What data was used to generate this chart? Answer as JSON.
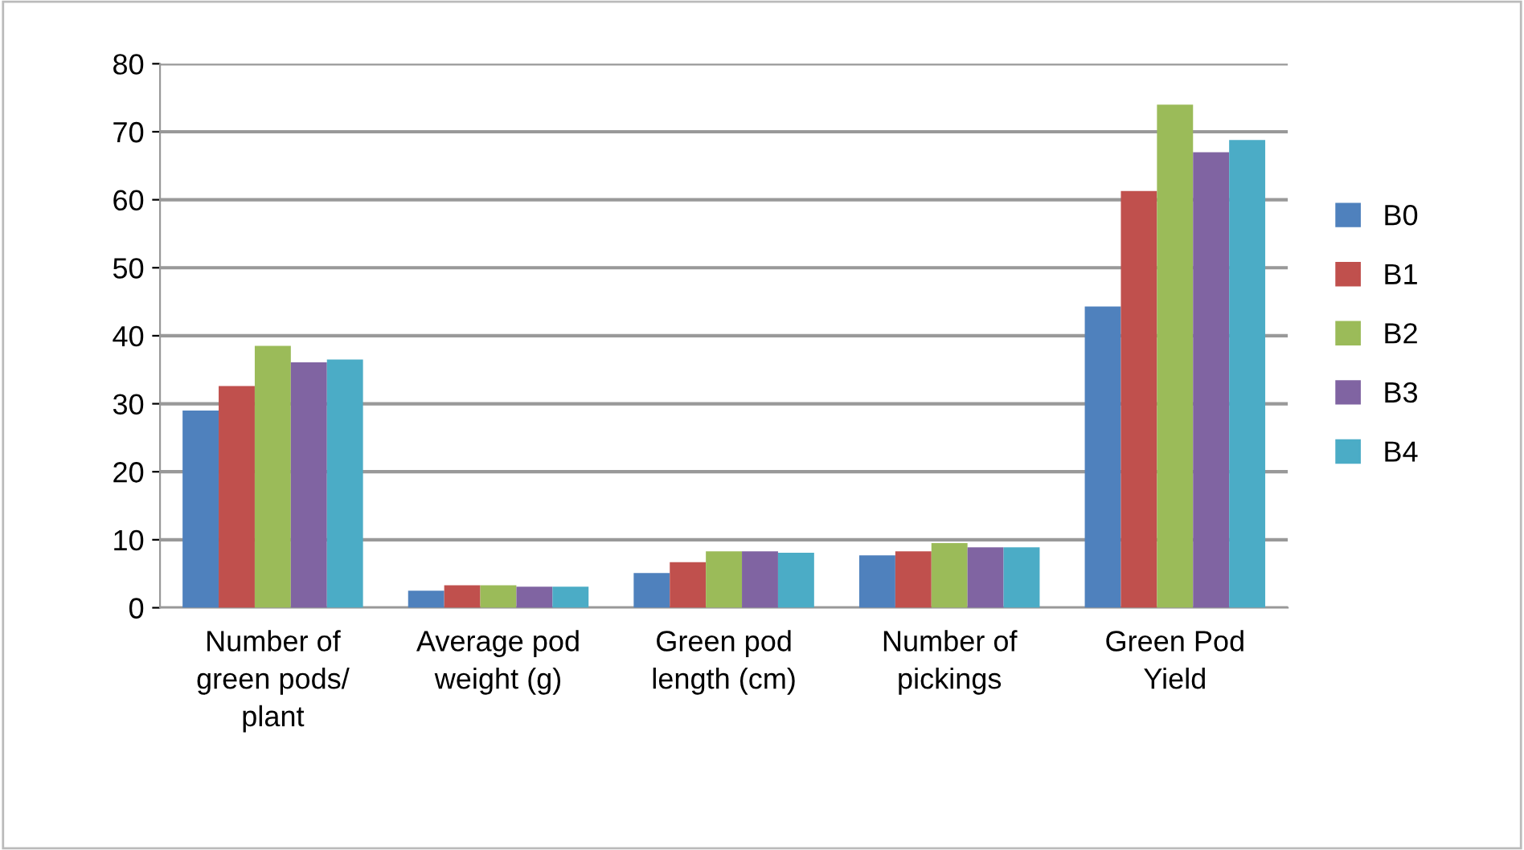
{
  "chart_data": {
    "type": "bar",
    "categories": [
      "Number of green pods/ plant",
      "Average pod weight (g)",
      "Green pod length (cm)",
      "Number of pickings",
      "Green Pod Yield"
    ],
    "series": [
      {
        "name": "B0",
        "color": "#4f81bd",
        "values": [
          29,
          2.5,
          5.1,
          7.7,
          44.3
        ]
      },
      {
        "name": "B1",
        "color": "#c0504d",
        "values": [
          32.6,
          3.3,
          6.7,
          8.3,
          61.3
        ]
      },
      {
        "name": "B2",
        "color": "#9bbb59",
        "values": [
          38.5,
          3.3,
          8.3,
          9.5,
          74
        ]
      },
      {
        "name": "B3",
        "color": "#8064a2",
        "values": [
          36.1,
          3.1,
          8.3,
          8.9,
          67
        ]
      },
      {
        "name": "B4",
        "color": "#4bacc6",
        "values": [
          36.5,
          3.1,
          8.1,
          8.9,
          68.8
        ]
      }
    ],
    "ylim": [
      0,
      80
    ],
    "yticks": [
      0,
      10,
      20,
      30,
      40,
      50,
      60,
      70,
      80
    ],
    "grid": "y",
    "legend": "right"
  }
}
